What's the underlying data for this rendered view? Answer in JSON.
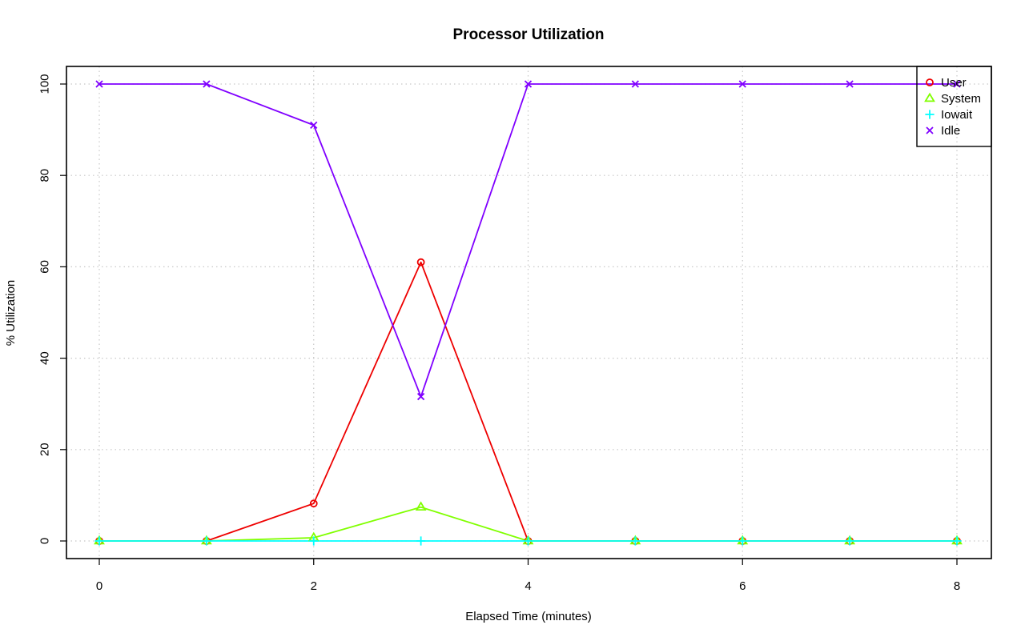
{
  "chart_data": {
    "type": "line",
    "title": "Processor Utilization",
    "xlabel": "Elapsed Time (minutes)",
    "ylabel": "% Utilization",
    "xlim": [
      0,
      8
    ],
    "ylim": [
      0,
      100
    ],
    "x_ticks": [
      0,
      2,
      4,
      6,
      8
    ],
    "y_ticks": [
      0,
      20,
      40,
      60,
      80,
      100
    ],
    "grid": true,
    "legend_position": "top-right",
    "x": [
      0,
      1,
      2,
      3,
      4,
      5,
      6,
      7,
      8
    ],
    "series": [
      {
        "name": "User",
        "color": "#ee0000",
        "marker": "circle",
        "values": [
          0,
          0,
          8.2,
          61,
          0,
          0,
          0,
          0,
          0
        ]
      },
      {
        "name": "System",
        "color": "#80ff00",
        "marker": "triangle",
        "values": [
          0,
          0,
          0.7,
          7.4,
          0,
          0,
          0,
          0,
          0
        ]
      },
      {
        "name": "Iowait",
        "color": "#00ffff",
        "marker": "plus",
        "values": [
          0,
          0,
          0,
          0,
          0,
          0,
          0,
          0,
          0
        ]
      },
      {
        "name": "Idle",
        "color": "#8000ff",
        "marker": "x",
        "values": [
          100,
          100,
          91,
          31.6,
          100,
          100,
          100,
          100,
          100
        ]
      }
    ]
  }
}
